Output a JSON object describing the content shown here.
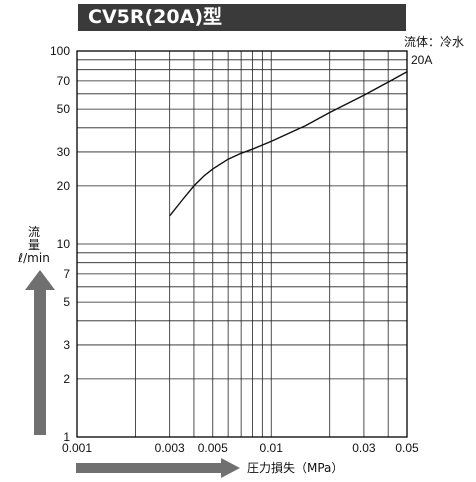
{
  "title": "CV5R(20A)型",
  "fluid_label": "流体：冷水",
  "colors": {
    "title_bg": "#3a3a3a",
    "title_fg": "#ffffff",
    "line": "#111111",
    "arrow": "#707070"
  },
  "chart_data": {
    "type": "line",
    "title": "CV5R(20A)型",
    "xlabel": "圧力損失（MPa）",
    "ylabel": [
      "流",
      "量",
      "ℓ/min"
    ],
    "x_scale": "log",
    "y_scale": "log",
    "xlim": [
      0.001,
      0.05
    ],
    "ylim": [
      1,
      100
    ],
    "x_ticks": [
      {
        "value": 0.001,
        "label": "0.001"
      },
      {
        "value": 0.003,
        "label": "0.003"
      },
      {
        "value": 0.005,
        "label": "0.005"
      },
      {
        "value": 0.01,
        "label": "0.01"
      },
      {
        "value": 0.03,
        "label": "0.03"
      },
      {
        "value": 0.05,
        "label": "0.05"
      }
    ],
    "y_ticks": [
      {
        "value": 1,
        "label": "1"
      },
      {
        "value": 2,
        "label": "2"
      },
      {
        "value": 3,
        "label": "3"
      },
      {
        "value": 5,
        "label": "5"
      },
      {
        "value": 7,
        "label": "7"
      },
      {
        "value": 10,
        "label": "10"
      },
      {
        "value": 20,
        "label": "20"
      },
      {
        "value": 30,
        "label": "30"
      },
      {
        "value": 50,
        "label": "50"
      },
      {
        "value": 70,
        "label": "70"
      },
      {
        "value": 100,
        "label": "100"
      }
    ],
    "x_gridlines": [
      0.002,
      0.003,
      0.004,
      0.005,
      0.006,
      0.007,
      0.008,
      0.009,
      0.01,
      0.02,
      0.03,
      0.04,
      0.05
    ],
    "y_gridlines": [
      2,
      3,
      4,
      5,
      6,
      7,
      8,
      9,
      10,
      20,
      30,
      40,
      50,
      60,
      70,
      80,
      90,
      100
    ],
    "grid": true,
    "series": [
      {
        "name": "20A",
        "x": [
          0.003,
          0.0035,
          0.004,
          0.0045,
          0.005,
          0.006,
          0.007,
          0.008,
          0.01,
          0.015,
          0.02,
          0.03,
          0.04,
          0.05
        ],
        "y": [
          14,
          17,
          20,
          22.5,
          24.5,
          27.5,
          29.5,
          31,
          34,
          41,
          48,
          59,
          69,
          78
        ]
      }
    ]
  }
}
